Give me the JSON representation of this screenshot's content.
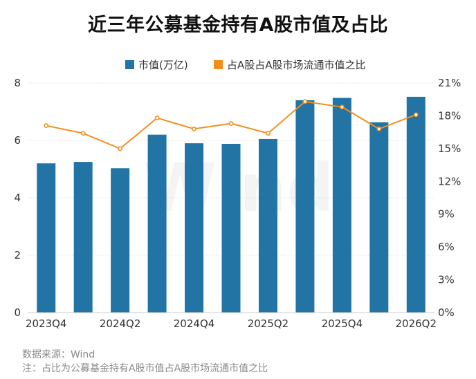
{
  "title": "近三年公募基金持有A股市值及占比",
  "footer": {
    "source": "数据来源：Wind",
    "note": "注：占比为公募基金持有A股市值占A股市场流通市值之比"
  },
  "watermark": "Wind",
  "colors": {
    "bar": "#2274a5",
    "line": "#f28e1c",
    "marker_fill": "#ffffff"
  },
  "chart_data": {
    "type": "bar",
    "categories": [
      "2023Q4",
      "2024Q1",
      "2024Q2",
      "2024Q3",
      "2024Q4",
      "2025Q1",
      "2025Q2",
      "2025Q3",
      "2025Q4",
      "2026Q1",
      "2026Q2"
    ],
    "x_tick_labels": [
      "2023Q4",
      "",
      "2024Q2",
      "",
      "2024Q4",
      "",
      "2025Q2",
      "",
      "2025Q4",
      "",
      "2026Q2"
    ],
    "series": [
      {
        "name": "市值(万亿)",
        "type": "bar",
        "axis": "left",
        "values": [
          5.2,
          5.25,
          5.03,
          6.2,
          5.9,
          5.88,
          6.05,
          7.4,
          7.48,
          6.63,
          7.52
        ]
      },
      {
        "name": "占A股市场流通市值之比",
        "type": "line",
        "axis": "right",
        "values": [
          17.1,
          16.4,
          15.0,
          17.8,
          16.8,
          17.3,
          16.4,
          19.3,
          18.8,
          16.8,
          18.1
        ]
      }
    ],
    "legend_labels": [
      "市值(万亿)",
      "占A股市场流通市值之比"
    ],
    "legend_position": "top-center",
    "y_left": {
      "min": 0,
      "max": 8,
      "ticks": [
        0,
        2,
        4,
        6,
        8
      ],
      "tick_labels": [
        "0",
        "2",
        "4",
        "6",
        "8"
      ]
    },
    "y_right": {
      "min": 0,
      "max": 21,
      "ticks": [
        0,
        3,
        6,
        9,
        12,
        15,
        18,
        21
      ],
      "tick_labels": [
        "0%",
        "3%",
        "6%",
        "9%",
        "12%",
        "15%",
        "18%",
        "21%"
      ]
    },
    "grid": true
  }
}
